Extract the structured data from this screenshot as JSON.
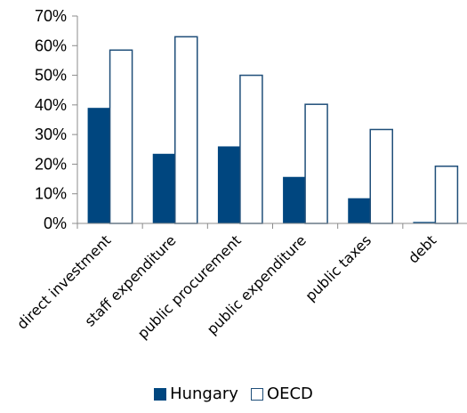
{
  "chart_data": {
    "type": "bar",
    "categories": [
      "direct investment",
      "staff expenditure",
      "public procurement",
      "public expenditure",
      "public taxes",
      "debt"
    ],
    "series": [
      {
        "name": "Hungary",
        "values": [
          39,
          23.5,
          26,
          15.7,
          8.5,
          0.5
        ],
        "color": "#00467f",
        "fill": "solid"
      },
      {
        "name": "OECD",
        "values": [
          58.5,
          63,
          50,
          40.2,
          31.7,
          19.3
        ],
        "color": "#1f4e79",
        "fill": "none"
      }
    ],
    "yticks": [
      "0%",
      "10%",
      "20%",
      "30%",
      "40%",
      "50%",
      "60%",
      "70%"
    ],
    "ylim": [
      0,
      70
    ],
    "grid": false,
    "legend_position": "bottom",
    "title": "",
    "xlabel": "",
    "ylabel": ""
  }
}
